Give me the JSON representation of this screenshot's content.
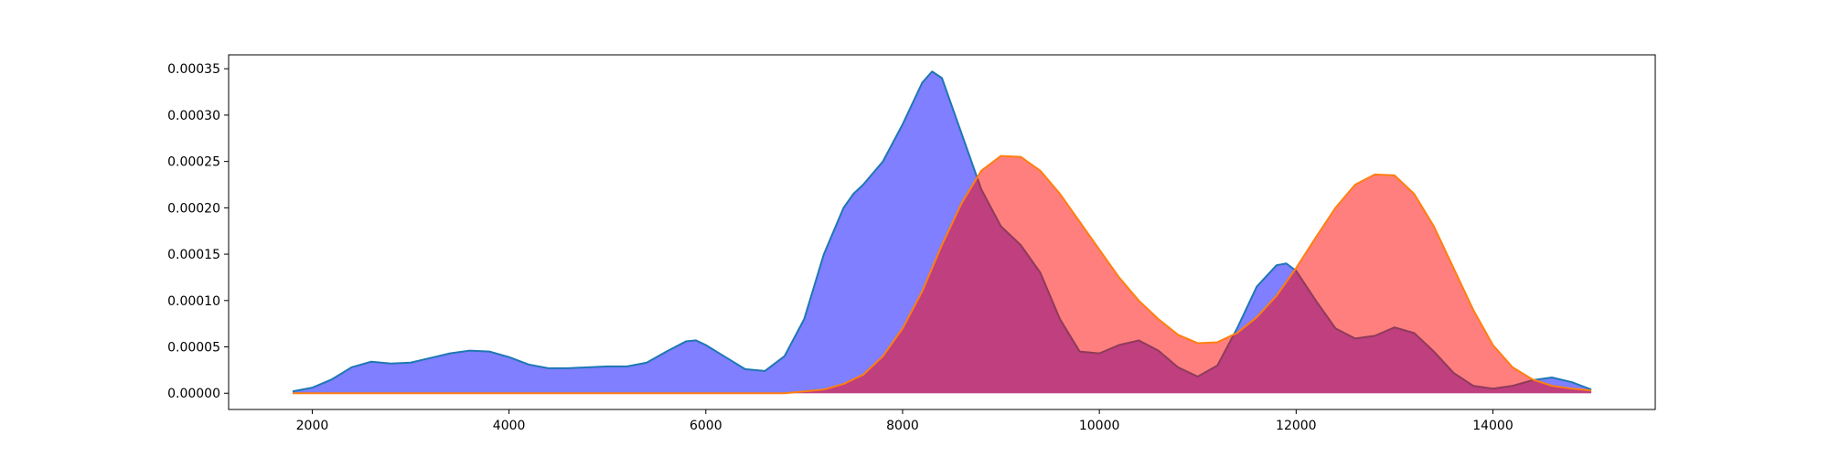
{
  "chart_data": {
    "type": "area",
    "title": "",
    "xlabel": "",
    "ylabel": "",
    "xlim": [
      1150,
      15650
    ],
    "ylim": [
      -1.75e-05,
      0.000365
    ],
    "grid": false,
    "legend": null,
    "xticks": [
      2000,
      4000,
      6000,
      8000,
      10000,
      12000,
      14000
    ],
    "xtick_labels": [
      "2000",
      "4000",
      "6000",
      "8000",
      "10000",
      "12000",
      "14000"
    ],
    "yticks": [
      0,
      5e-05,
      0.0001,
      0.00015,
      0.0002,
      0.00025,
      0.0003,
      0.00035
    ],
    "ytick_labels": [
      "0.00000",
      "0.00005",
      "0.00010",
      "0.00015",
      "0.00020",
      "0.00025",
      "0.00030",
      "0.00035"
    ],
    "series": [
      {
        "fill": "#0000ff",
        "fill_opacity": 0.5,
        "line": "#1f77b4",
        "x": [
          1800,
          2000,
          2200,
          2400,
          2600,
          2800,
          3000,
          3200,
          3400,
          3600,
          3800,
          4000,
          4200,
          4400,
          4600,
          4800,
          5000,
          5200,
          5400,
          5600,
          5800,
          5900,
          6000,
          6200,
          6400,
          6600,
          6800,
          7000,
          7200,
          7400,
          7500,
          7600,
          7800,
          8000,
          8200,
          8300,
          8400,
          8600,
          8800,
          9000,
          9200,
          9400,
          9600,
          9800,
          10000,
          10200,
          10400,
          10600,
          10800,
          11000,
          11200,
          11400,
          11600,
          11800,
          11900,
          12000,
          12200,
          12400,
          12600,
          12800,
          13000,
          13200,
          13400,
          13600,
          13800,
          14000,
          14200,
          14400,
          14600,
          14800,
          15000
        ],
        "y": [
          2e-06,
          6e-06,
          1.5e-05,
          2.8e-05,
          3.4e-05,
          3.2e-05,
          3.3e-05,
          3.8e-05,
          4.3e-05,
          4.6e-05,
          4.5e-05,
          3.9e-05,
          3.1e-05,
          2.7e-05,
          2.7e-05,
          2.8e-05,
          2.9e-05,
          2.9e-05,
          3.3e-05,
          4.5e-05,
          5.6e-05,
          5.7e-05,
          5.2e-05,
          3.9e-05,
          2.6e-05,
          2.4e-05,
          4e-05,
          8e-05,
          0.00015,
          0.0002,
          0.000215,
          0.000225,
          0.00025,
          0.00029,
          0.000335,
          0.000347,
          0.00034,
          0.00028,
          0.00022,
          0.00018,
          0.00016,
          0.00013,
          8e-05,
          4.5e-05,
          4.3e-05,
          5.2e-05,
          5.7e-05,
          4.6e-05,
          2.8e-05,
          1.8e-05,
          3e-05,
          7e-05,
          0.000115,
          0.000138,
          0.00014,
          0.000132,
          0.0001,
          7e-05,
          5.9e-05,
          6.2e-05,
          7.1e-05,
          6.5e-05,
          4.5e-05,
          2.2e-05,
          8e-06,
          5e-06,
          8e-06,
          1.4e-05,
          1.7e-05,
          1.2e-05,
          4e-06
        ]
      },
      {
        "fill": "#ff0000",
        "fill_opacity": 0.5,
        "line": "#ff7f0e",
        "x": [
          1800,
          6800,
          7000,
          7200,
          7400,
          7600,
          7800,
          8000,
          8200,
          8400,
          8600,
          8800,
          9000,
          9200,
          9400,
          9600,
          9800,
          10000,
          10200,
          10400,
          10600,
          10800,
          11000,
          11200,
          11400,
          11600,
          11800,
          12000,
          12200,
          12400,
          12600,
          12800,
          13000,
          13200,
          13400,
          13600,
          13800,
          14000,
          14200,
          14400,
          14600,
          14800,
          15000
        ],
        "y": [
          0,
          0,
          2e-06,
          4e-06,
          1e-05,
          2e-05,
          4e-05,
          7e-05,
          0.00011,
          0.00016,
          0.000205,
          0.00024,
          0.000256,
          0.000255,
          0.00024,
          0.000215,
          0.000185,
          0.000155,
          0.000125,
          0.0001,
          8e-05,
          6.3e-05,
          5.4e-05,
          5.5e-05,
          6.5e-05,
          8.2e-05,
          0.000105,
          0.000135,
          0.000168,
          0.0002,
          0.000225,
          0.000236,
          0.000235,
          0.000215,
          0.00018,
          0.000135,
          9e-05,
          5.2e-05,
          2.8e-05,
          1.5e-05,
          8e-06,
          5e-06,
          3e-06
        ]
      }
    ]
  }
}
